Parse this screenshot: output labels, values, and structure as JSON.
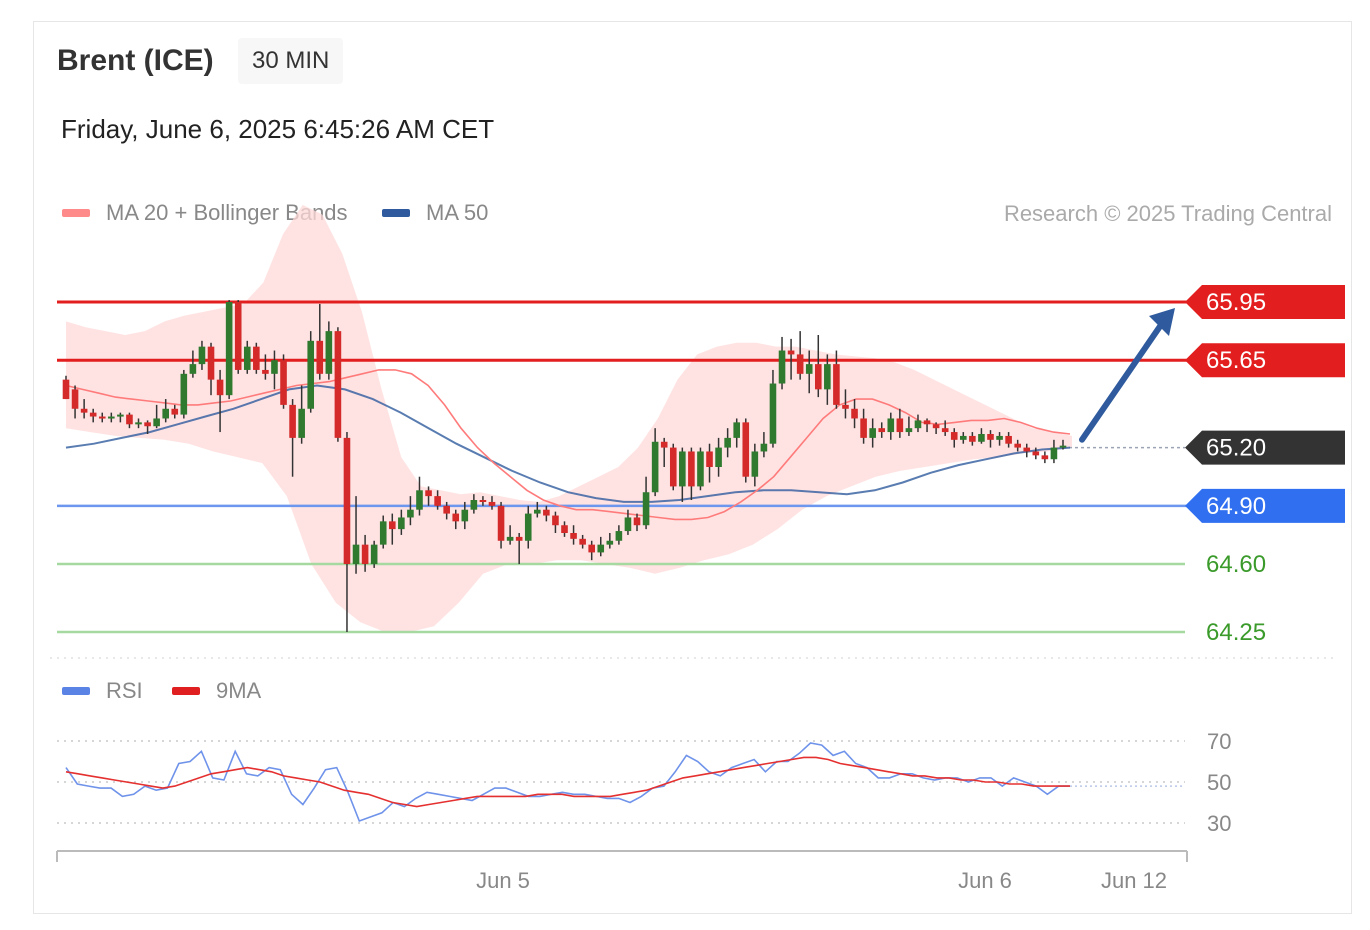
{
  "header": {
    "instrument": "Brent (ICE)",
    "timeframe": "30 MIN",
    "datetime": "Friday, June 6, 2025 6:45:26 AM CET"
  },
  "legend": {
    "ma20_label": "MA 20 + Bollinger Bands",
    "ma20_color": "#ff8a8a",
    "ma50_label": "MA 50",
    "ma50_color": "#2f5b9e",
    "credit": "Research © 2025 Trading Central"
  },
  "rsi_legend": {
    "rsi_label": "RSI",
    "rsi_color": "#5b83e6",
    "ma9_label": "9MA",
    "ma9_color": "#e02020"
  },
  "chart_data": [
    {
      "type": "candlestick",
      "ylim": [
        64.12,
        66.55
      ],
      "xlabel": "",
      "ylabel": "",
      "x_ticks": [
        "Jun 5",
        "Jun 6",
        "Jun 12"
      ],
      "levels": [
        {
          "label": "65.95",
          "value": 65.95,
          "style": "resistance",
          "color": "#e31e1e",
          "badge": true
        },
        {
          "label": "65.65",
          "value": 65.65,
          "style": "resistance",
          "color": "#e31e1e",
          "badge": true
        },
        {
          "label": "65.20",
          "value": 65.2,
          "style": "last-price",
          "color": "#333333",
          "badge": true
        },
        {
          "label": "64.90",
          "value": 64.9,
          "style": "pivot",
          "color": "#2f6ff0",
          "badge": true
        },
        {
          "label": "64.60",
          "value": 64.6,
          "style": "support",
          "color": "#3a9a2a",
          "badge": false
        },
        {
          "label": "64.25",
          "value": 64.25,
          "style": "support",
          "color": "#3a9a2a",
          "badge": false
        }
      ],
      "arrow": {
        "direction": "up",
        "from": 65.22,
        "to": 65.95,
        "color": "#2f5b9e"
      },
      "candles": [
        [
          65.55,
          65.45,
          65.57,
          65.45
        ],
        [
          65.5,
          65.4,
          65.52,
          65.35
        ],
        [
          65.4,
          65.38,
          65.45,
          65.35
        ],
        [
          65.38,
          65.36,
          65.4,
          65.33
        ],
        [
          65.36,
          65.35,
          65.38,
          65.33
        ],
        [
          65.35,
          65.36,
          65.38,
          65.33
        ],
        [
          65.36,
          65.37,
          65.38,
          65.33
        ],
        [
          65.37,
          65.32,
          65.38,
          65.3
        ],
        [
          65.32,
          65.33,
          65.35,
          65.3
        ],
        [
          65.33,
          65.31,
          65.34,
          65.27
        ],
        [
          65.31,
          65.35,
          65.42,
          65.3
        ],
        [
          65.35,
          65.4,
          65.45,
          65.33
        ],
        [
          65.4,
          65.37,
          65.42,
          65.35
        ],
        [
          65.37,
          65.58,
          65.6,
          65.35
        ],
        [
          65.58,
          65.63,
          65.7,
          65.56
        ],
        [
          65.63,
          65.72,
          65.75,
          65.6
        ],
        [
          65.72,
          65.55,
          65.74,
          65.47
        ],
        [
          65.55,
          65.47,
          65.6,
          65.28
        ],
        [
          65.47,
          65.95,
          65.96,
          65.45
        ],
        [
          65.95,
          65.6,
          65.96,
          65.58
        ],
        [
          65.6,
          65.72,
          65.75,
          65.58
        ],
        [
          65.72,
          65.6,
          65.74,
          65.58
        ],
        [
          65.6,
          65.58,
          65.68,
          65.55
        ],
        [
          65.58,
          65.65,
          65.7,
          65.5
        ],
        [
          65.65,
          65.42,
          65.68,
          65.4
        ],
        [
          65.42,
          65.25,
          65.45,
          65.05
        ],
        [
          65.25,
          65.4,
          65.52,
          65.22
        ],
        [
          65.4,
          65.75,
          65.8,
          65.38
        ],
        [
          65.75,
          65.58,
          65.94,
          65.55
        ],
        [
          65.58,
          65.8,
          65.85,
          65.55
        ],
        [
          65.8,
          65.25,
          65.82,
          65.23
        ],
        [
          65.25,
          64.6,
          65.28,
          64.25
        ],
        [
          64.6,
          64.7,
          64.95,
          64.55
        ],
        [
          64.7,
          64.6,
          64.75,
          64.56
        ],
        [
          64.6,
          64.7,
          64.72,
          64.58
        ],
        [
          64.7,
          64.82,
          64.85,
          64.68
        ],
        [
          64.82,
          64.78,
          64.86,
          64.7
        ],
        [
          64.78,
          64.84,
          64.88,
          64.75
        ],
        [
          64.84,
          64.88,
          64.95,
          64.8
        ],
        [
          64.88,
          64.98,
          65.05,
          64.85
        ],
        [
          64.98,
          64.95,
          65.0,
          64.9
        ],
        [
          64.95,
          64.9,
          64.98,
          64.88
        ],
        [
          64.9,
          64.86,
          64.92,
          64.83
        ],
        [
          64.86,
          64.82,
          64.88,
          64.78
        ],
        [
          64.82,
          64.88,
          64.92,
          64.78
        ],
        [
          64.88,
          64.93,
          64.96,
          64.86
        ],
        [
          64.93,
          64.92,
          64.95,
          64.9
        ],
        [
          64.92,
          64.9,
          64.95,
          64.88
        ],
        [
          64.9,
          64.72,
          64.92,
          64.68
        ],
        [
          64.72,
          64.74,
          64.8,
          64.7
        ],
        [
          64.74,
          64.72,
          64.76,
          64.6
        ],
        [
          64.72,
          64.86,
          64.9,
          64.68
        ],
        [
          64.86,
          64.88,
          64.92,
          64.84
        ],
        [
          64.88,
          64.85,
          64.9,
          64.82
        ],
        [
          64.85,
          64.8,
          64.87,
          64.76
        ],
        [
          64.8,
          64.76,
          64.82,
          64.74
        ],
        [
          64.76,
          64.73,
          64.8,
          64.7
        ],
        [
          64.73,
          64.7,
          64.75,
          64.68
        ],
        [
          64.7,
          64.66,
          64.72,
          64.62
        ],
        [
          64.66,
          64.7,
          64.74,
          64.64
        ],
        [
          64.7,
          64.72,
          64.76,
          64.68
        ],
        [
          64.72,
          64.77,
          64.8,
          64.7
        ],
        [
          64.77,
          64.84,
          64.88,
          64.75
        ],
        [
          64.84,
          64.8,
          64.86,
          64.77
        ],
        [
          64.8,
          64.97,
          65.05,
          64.78
        ],
        [
          64.97,
          65.23,
          65.3,
          64.95
        ],
        [
          65.23,
          65.2,
          65.25,
          65.1
        ],
        [
          65.2,
          65.0,
          65.22,
          64.98
        ],
        [
          65.0,
          65.18,
          65.2,
          64.92
        ],
        [
          65.18,
          65.0,
          65.2,
          64.93
        ],
        [
          65.0,
          65.18,
          65.2,
          64.98
        ],
        [
          65.18,
          65.1,
          65.22,
          65.02
        ],
        [
          65.1,
          65.2,
          65.25,
          65.05
        ],
        [
          65.2,
          65.25,
          65.3,
          65.15
        ],
        [
          65.25,
          65.33,
          65.35,
          65.2
        ],
        [
          65.33,
          65.05,
          65.35,
          65.02
        ],
        [
          65.05,
          65.18,
          65.22,
          65.0
        ],
        [
          65.18,
          65.22,
          65.28,
          65.15
        ],
        [
          65.22,
          65.53,
          65.6,
          65.2
        ],
        [
          65.53,
          65.7,
          65.77,
          65.5
        ],
        [
          65.7,
          65.68,
          65.76,
          65.55
        ],
        [
          65.68,
          65.58,
          65.8,
          65.55
        ],
        [
          65.58,
          65.63,
          65.7,
          65.48
        ],
        [
          65.63,
          65.5,
          65.78,
          65.46
        ],
        [
          65.5,
          65.63,
          65.68,
          65.42
        ],
        [
          65.63,
          65.42,
          65.7,
          65.4
        ],
        [
          65.42,
          65.4,
          65.5,
          65.35
        ],
        [
          65.4,
          65.35,
          65.45,
          65.3
        ],
        [
          65.35,
          65.25,
          65.4,
          65.22
        ],
        [
          65.25,
          65.3,
          65.35,
          65.2
        ],
        [
          65.3,
          65.28,
          65.33,
          65.25
        ],
        [
          65.28,
          65.35,
          65.38,
          65.24
        ],
        [
          65.35,
          65.28,
          65.4,
          65.25
        ],
        [
          65.28,
          65.3,
          65.36,
          65.26
        ],
        [
          65.3,
          65.34,
          65.37,
          65.28
        ],
        [
          65.34,
          65.32,
          65.35,
          65.28
        ],
        [
          65.32,
          65.3,
          65.33,
          65.27
        ],
        [
          65.3,
          65.28,
          65.34,
          65.26
        ],
        [
          65.28,
          65.24,
          65.3,
          65.2
        ],
        [
          65.24,
          65.26,
          65.28,
          65.22
        ],
        [
          65.26,
          65.23,
          65.28,
          65.21
        ],
        [
          65.23,
          65.27,
          65.3,
          65.22
        ],
        [
          65.27,
          65.24,
          65.29,
          65.2
        ],
        [
          65.24,
          65.26,
          65.28,
          65.21
        ],
        [
          65.26,
          65.22,
          65.28,
          65.2
        ],
        [
          65.22,
          65.2,
          65.24,
          65.18
        ],
        [
          65.2,
          65.18,
          65.22,
          65.15
        ],
        [
          65.18,
          65.16,
          65.2,
          65.14
        ],
        [
          65.16,
          65.14,
          65.18,
          65.12
        ],
        [
          65.14,
          65.2,
          65.24,
          65.12
        ],
        [
          65.2,
          65.21,
          65.24,
          65.19
        ]
      ],
      "ma20": [
        65.52,
        65.5,
        65.48,
        65.46,
        65.45,
        65.44,
        65.43,
        65.42,
        65.42,
        65.43,
        65.44,
        65.46,
        65.48,
        65.5,
        65.52,
        65.53,
        65.54,
        65.56,
        65.58,
        65.6,
        65.6,
        65.58,
        65.52,
        65.42,
        65.3,
        65.2,
        65.12,
        65.05,
        64.98,
        64.93,
        64.9,
        64.88,
        64.88,
        64.87,
        64.86,
        64.85,
        64.84,
        64.83,
        64.83,
        64.84,
        64.87,
        64.92,
        64.98,
        65.05,
        65.15,
        65.25,
        65.35,
        65.42,
        65.45,
        65.45,
        65.42,
        65.38,
        65.33,
        65.32,
        65.33,
        65.34,
        65.34,
        65.35,
        65.33,
        65.3,
        65.28,
        65.27
      ],
      "bb_upper": [
        65.85,
        65.82,
        65.8,
        65.78,
        65.8,
        65.85,
        65.88,
        65.9,
        65.92,
        65.94,
        66.05,
        66.3,
        66.45,
        66.4,
        66.2,
        65.9,
        65.5,
        65.15,
        65.0,
        64.98,
        64.96,
        64.97,
        64.95,
        64.93,
        64.92,
        64.95,
        65.0,
        65.05,
        65.1,
        65.2,
        65.35,
        65.55,
        65.68,
        65.72,
        65.74,
        65.74,
        65.72,
        65.72,
        65.7,
        65.68,
        65.67,
        65.66,
        65.64,
        65.6,
        65.55,
        65.5,
        65.45,
        65.4,
        65.35,
        65.3,
        65.28,
        65.26
      ],
      "bb_lower": [
        65.3,
        65.28,
        65.26,
        65.25,
        65.24,
        65.22,
        65.18,
        65.15,
        65.12,
        64.95,
        64.6,
        64.4,
        64.3,
        64.25,
        64.25,
        64.28,
        64.4,
        64.55,
        64.6,
        64.6,
        64.62,
        64.62,
        64.6,
        64.58,
        64.55,
        64.58,
        64.62,
        64.65,
        64.7,
        64.78,
        64.88,
        64.95,
        65.0,
        65.05,
        65.08,
        65.1,
        65.12,
        65.14,
        65.15,
        65.17,
        65.18,
        65.2
      ],
      "ma50": [
        65.2,
        65.22,
        65.25,
        65.28,
        65.32,
        65.36,
        65.4,
        65.45,
        65.5,
        65.52,
        65.5,
        65.45,
        65.38,
        65.3,
        65.22,
        65.15,
        65.08,
        65.02,
        64.97,
        64.94,
        64.92,
        64.92,
        64.93,
        64.95,
        64.97,
        64.98,
        64.98,
        64.97,
        64.96,
        64.98,
        65.02,
        65.07,
        65.11,
        65.14,
        65.17,
        65.19,
        65.2
      ]
    },
    {
      "type": "line",
      "name": "RSI",
      "ylim": [
        20,
        80
      ],
      "y_ticks": [
        70,
        50,
        30
      ],
      "reference_lines": [
        70,
        50,
        30
      ],
      "series": [
        {
          "name": "RSI",
          "values": [
            57,
            49,
            48,
            47,
            47,
            43,
            44,
            48,
            46,
            47,
            59,
            60,
            65,
            52,
            51,
            65,
            54,
            53,
            57,
            56,
            44,
            39,
            47,
            56,
            57,
            45,
            31,
            33,
            35,
            40,
            38,
            42,
            45,
            44,
            43,
            42,
            41,
            44,
            47,
            47,
            45,
            43,
            43,
            44,
            45,
            44,
            44,
            43,
            42,
            42,
            40,
            43,
            47,
            48,
            55,
            63,
            60,
            55,
            53,
            57,
            59,
            61,
            55,
            60,
            60,
            64,
            69,
            68,
            63,
            65,
            59,
            57,
            52,
            52,
            54,
            54,
            52,
            51,
            52,
            52,
            50,
            52,
            52,
            48,
            52,
            50,
            48,
            44,
            48,
            48
          ]
        },
        {
          "name": "9MA",
          "values": [
            55,
            54,
            53,
            52,
            51,
            50,
            49,
            48,
            47,
            48,
            50,
            52,
            54,
            55,
            56,
            57,
            56,
            55,
            53,
            52,
            51,
            50,
            48,
            46,
            45,
            44,
            42,
            40,
            39,
            38,
            39,
            40,
            41,
            42,
            43,
            43,
            43,
            43,
            43,
            44,
            44,
            44,
            43,
            43,
            43,
            43,
            44,
            45,
            46,
            48,
            50,
            52,
            53,
            54,
            55,
            56,
            57,
            58,
            59,
            60,
            61,
            62,
            62,
            61,
            59,
            58,
            57,
            56,
            55,
            54,
            53,
            53,
            52,
            52,
            51,
            51,
            50,
            50,
            49,
            49,
            48,
            48,
            48,
            48
          ]
        }
      ]
    }
  ]
}
